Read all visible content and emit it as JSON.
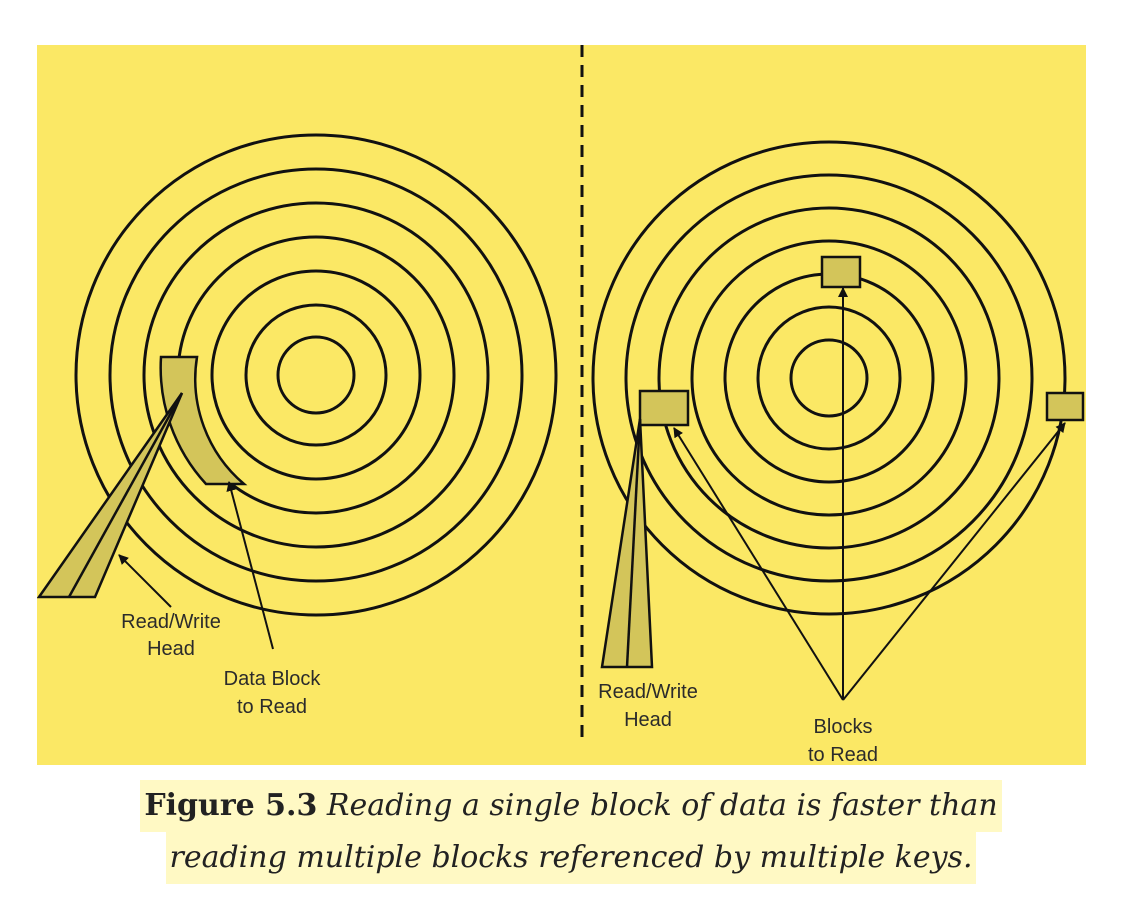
{
  "diagram": {
    "left_panel": {
      "head_label_line1": "Read/Write",
      "head_label_line2": "Head",
      "block_label_line1": "Data Block",
      "block_label_line2": "to Read"
    },
    "right_panel": {
      "head_label_line1": "Read/Write",
      "head_label_line2": "Head",
      "blocks_label_line1": "Blocks",
      "blocks_label_line2": "to Read"
    },
    "colors": {
      "background": "#fbe865",
      "block_fill": "#d3c55a",
      "stroke": "#111111"
    }
  },
  "caption": {
    "label": "Figure 5.3",
    "line1_text": "Reading a single block of data is faster than",
    "line2_text": "reading multiple blocks referenced by multiple keys."
  }
}
